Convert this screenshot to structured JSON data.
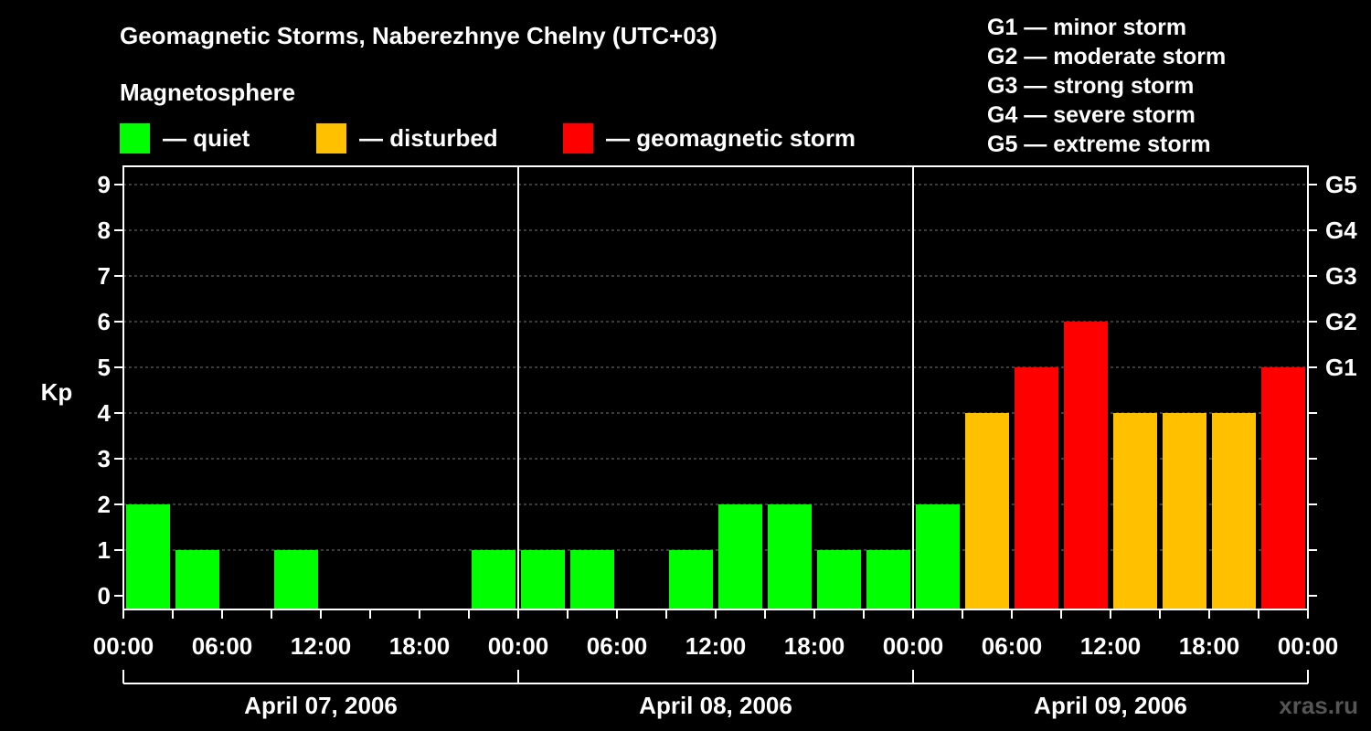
{
  "header": {
    "title": "Geomagnetic Storms, Naberezhnye Chelny (UTC+03)",
    "magnetosphere_label": "Magnetosphere"
  },
  "legend": [
    {
      "label": "— quiet",
      "color": "#00ff00"
    },
    {
      "label": "— disturbed",
      "color": "#ffc000"
    },
    {
      "label": "— geomagnetic storm",
      "color": "#ff0000"
    }
  ],
  "storm_scale": [
    "G1 — minor storm",
    "G2 — moderate storm",
    "G3 — strong storm",
    "G4 — severe storm",
    "G5 — extreme storm"
  ],
  "watermark": "xras.ru",
  "colors": {
    "quiet": "#00ff00",
    "disturbed": "#ffc000",
    "storm": "#ff0000",
    "background": "#000000"
  },
  "chart_data": {
    "type": "bar",
    "title": "Geomagnetic Storms, Naberezhnye Chelny (UTC+03)",
    "ylabel": "Kp",
    "ylim": [
      0,
      9
    ],
    "yticks": [
      "0",
      "1",
      "2",
      "3",
      "4",
      "5",
      "6",
      "7",
      "8",
      "9"
    ],
    "right_axis": [
      {
        "kp": 5,
        "label": "G1"
      },
      {
        "kp": 6,
        "label": "G2"
      },
      {
        "kp": 7,
        "label": "G3"
      },
      {
        "kp": 8,
        "label": "G4"
      },
      {
        "kp": 9,
        "label": "G5"
      }
    ],
    "x_tick_labels": [
      "00:00",
      "06:00",
      "12:00",
      "18:00",
      "00:00",
      "06:00",
      "12:00",
      "18:00",
      "00:00",
      "06:00",
      "12:00",
      "18:00",
      "00:00"
    ],
    "days": [
      "April 07, 2006",
      "April 08, 2006",
      "April 09, 2006"
    ],
    "bar_hours": 3,
    "grid": true,
    "values": [
      2,
      1,
      0,
      1,
      0,
      0,
      0,
      1,
      1,
      1,
      0,
      1,
      2,
      2,
      1,
      1,
      2,
      4,
      5,
      6,
      4,
      4,
      4,
      5
    ]
  }
}
